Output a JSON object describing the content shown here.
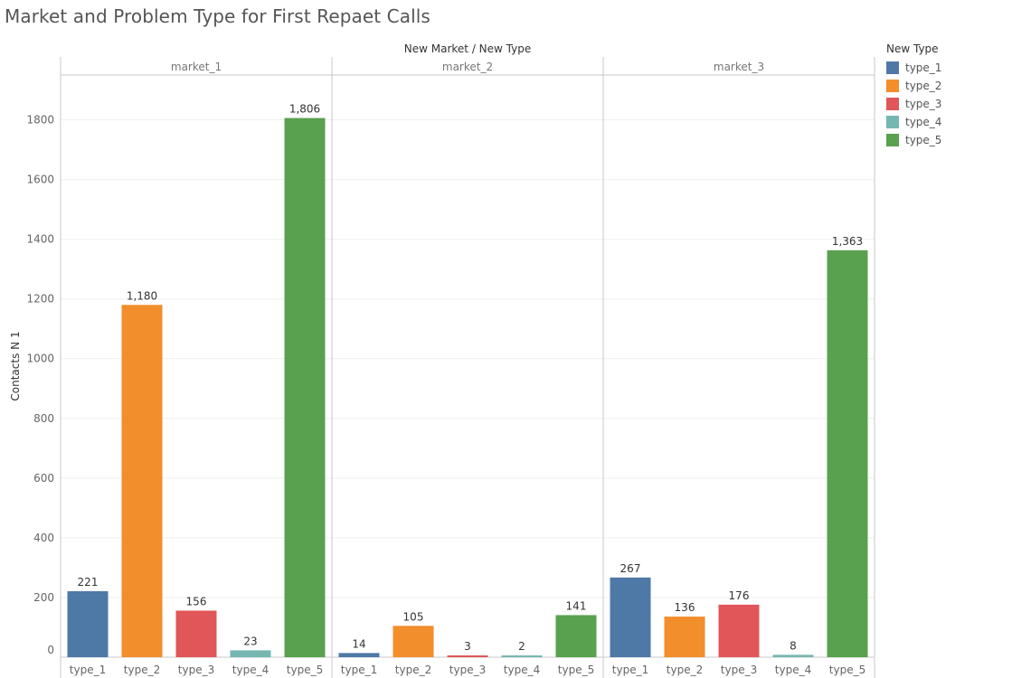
{
  "title": "Market and Problem Type for First Repaet Calls",
  "chart_data": {
    "type": "bar",
    "title": "Market and Problem Type for First Repaet Calls",
    "column_header": "New Market  /  New Type",
    "ylabel": "Contacts N 1",
    "ylim": [
      0,
      1950
    ],
    "yticks": [
      0,
      200,
      400,
      600,
      800,
      1000,
      1200,
      1400,
      1600,
      1800
    ],
    "grid": true,
    "legend_position": "right",
    "legend_title": "New Type",
    "categories": [
      "type_1",
      "type_2",
      "type_3",
      "type_4",
      "type_5"
    ],
    "colors": [
      "#4e79a7",
      "#f28e2b",
      "#e15759",
      "#76b7b2",
      "#59a14f"
    ],
    "panels": [
      {
        "market": "market_1",
        "values": [
          221,
          1180,
          156,
          23,
          1806
        ],
        "labels": [
          "221",
          "1,180",
          "156",
          "23",
          "1,806"
        ]
      },
      {
        "market": "market_2",
        "values": [
          14,
          105,
          3,
          2,
          141
        ],
        "labels": [
          "14",
          "105",
          "3",
          "2",
          "141"
        ]
      },
      {
        "market": "market_3",
        "values": [
          267,
          136,
          176,
          8,
          1363
        ],
        "labels": [
          "267",
          "136",
          "176",
          "8",
          "1,363"
        ]
      }
    ]
  }
}
